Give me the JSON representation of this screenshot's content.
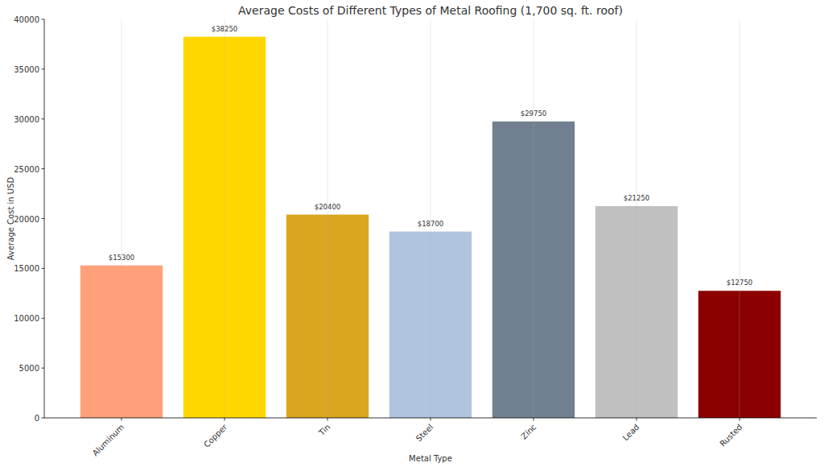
{
  "chart_data": {
    "type": "bar",
    "title": "Average Costs of Different Types of Metal Roofing (1,700 sq. ft. roof)",
    "x_label": "Metal Type",
    "y_label": "Average Cost in USD",
    "categories": [
      "Aluminum",
      "Copper",
      "Tin",
      "Steel",
      "Zinc",
      "Lead",
      "Rusted"
    ],
    "values": [
      15300,
      38250,
      20400,
      18700,
      29750,
      21250,
      12750
    ],
    "value_labels": [
      "$15300",
      "$38250",
      "$20400",
      "$18700",
      "$29750",
      "$21250",
      "$12750"
    ],
    "colors": [
      "#ffa07a",
      "#ffd700",
      "#daa520",
      "#b0c4de",
      "#708090",
      "#c0c0c0",
      "#8b0000"
    ],
    "ylim": [
      0,
      40000
    ],
    "yticks": [
      0,
      5000,
      10000,
      15000,
      20000,
      25000,
      30000,
      35000,
      40000
    ],
    "grid": true,
    "data_labels": true
  }
}
